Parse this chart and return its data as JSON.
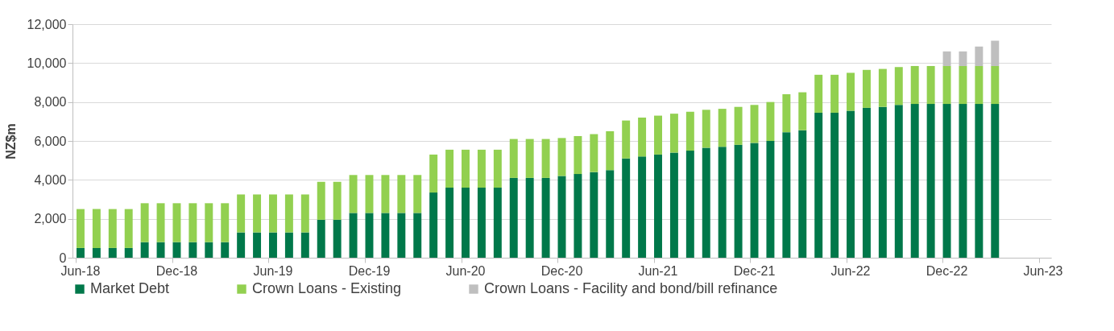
{
  "chart_data": {
    "type": "bar",
    "ylabel": "NZ$m",
    "stacked": true,
    "grid": "y",
    "legend": "bottom",
    "ylim": [
      0,
      12000
    ],
    "yticks": [
      {
        "value": 0,
        "label": "0"
      },
      {
        "value": 2000,
        "label": "2,000"
      },
      {
        "value": 4000,
        "label": "4,000"
      },
      {
        "value": 6000,
        "label": "6,000"
      },
      {
        "value": 8000,
        "label": "8,000"
      },
      {
        "value": 10000,
        "label": "10,000"
      },
      {
        "value": 12000,
        "label": "12,000"
      }
    ],
    "categories": [
      "Jun-18",
      null,
      null,
      null,
      null,
      null,
      "Dec-18",
      null,
      null,
      null,
      null,
      null,
      "Jun-19",
      null,
      null,
      null,
      null,
      null,
      "Dec-19",
      null,
      null,
      null,
      null,
      null,
      "Jun-20",
      null,
      null,
      null,
      null,
      null,
      "Dec-20",
      null,
      null,
      null,
      null,
      null,
      "Jun-21",
      null,
      null,
      null,
      null,
      null,
      "Dec-21",
      null,
      null,
      null,
      null,
      null,
      "Jun-22",
      null,
      null,
      null,
      null,
      null,
      "Dec-22",
      null,
      null,
      null,
      null,
      null,
      "Jun-23"
    ],
    "series": [
      {
        "name": "Market Debt",
        "color": "#00784a",
        "values": [
          500,
          500,
          500,
          500,
          800,
          800,
          800,
          800,
          800,
          800,
          1300,
          1300,
          1300,
          1300,
          1300,
          1950,
          1950,
          2300,
          2300,
          2300,
          2300,
          2300,
          3350,
          3600,
          3600,
          3600,
          3600,
          4100,
          4100,
          4100,
          4200,
          4300,
          4400,
          4500,
          5100,
          5200,
          5300,
          5400,
          5500,
          5650,
          5700,
          5800,
          5900,
          6000,
          6450,
          6550,
          7450,
          7450,
          7550,
          7700,
          7750,
          7850,
          7900,
          7900,
          7900,
          7900,
          7900,
          7900,
          null,
          null,
          null
        ]
      },
      {
        "name": "Crown Loans - Existing",
        "color": "#92d050",
        "values": [
          2000,
          2000,
          2000,
          2000,
          2000,
          2000,
          2000,
          2000,
          2000,
          2000,
          1950,
          1950,
          1950,
          1950,
          1950,
          1950,
          1950,
          1950,
          1950,
          1950,
          1950,
          1950,
          1950,
          1950,
          1950,
          1950,
          1950,
          2000,
          2000,
          2000,
          1950,
          1950,
          1950,
          2000,
          1950,
          2000,
          2000,
          2000,
          2000,
          1950,
          1950,
          1950,
          1950,
          2000,
          1950,
          1950,
          1950,
          1950,
          1950,
          1950,
          1950,
          1950,
          1950,
          1950,
          1950,
          1950,
          1950,
          1950,
          null,
          null,
          null
        ]
      },
      {
        "name": "Crown Loans - Facility and bond/bill refinance",
        "color": "#bfbfbf",
        "values": [
          null,
          null,
          null,
          null,
          null,
          null,
          null,
          null,
          null,
          null,
          null,
          null,
          null,
          null,
          null,
          null,
          null,
          null,
          null,
          null,
          null,
          null,
          null,
          null,
          null,
          null,
          null,
          null,
          null,
          null,
          null,
          null,
          null,
          null,
          null,
          null,
          null,
          null,
          null,
          null,
          null,
          null,
          null,
          null,
          null,
          null,
          null,
          null,
          null,
          null,
          null,
          null,
          null,
          null,
          750,
          750,
          1000,
          1300,
          null,
          null,
          null
        ]
      }
    ]
  }
}
